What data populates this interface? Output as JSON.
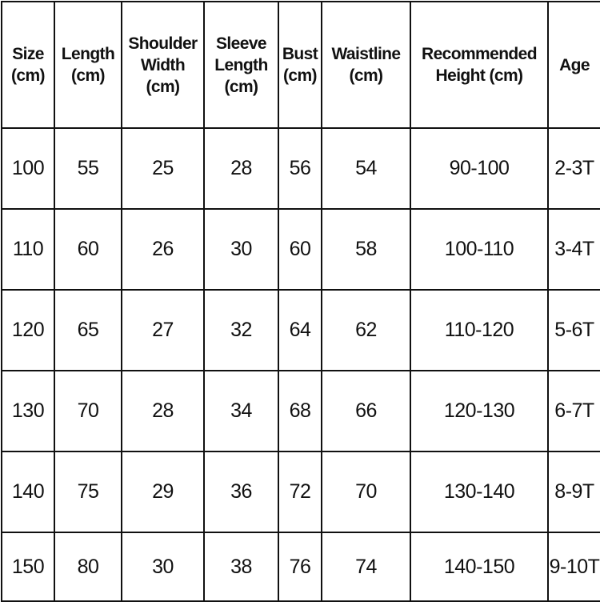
{
  "table": {
    "header": [
      [
        "Size",
        "(cm)"
      ],
      [
        "Length",
        "(cm)"
      ],
      [
        "Shoulder",
        "Width",
        "(cm)"
      ],
      [
        "Sleeve",
        "Length",
        "(cm)"
      ],
      [
        "Bust",
        "(cm)"
      ],
      [
        "Waistline",
        "(cm)"
      ],
      [
        "Recommended",
        "Height (cm)"
      ],
      [
        "Age"
      ]
    ],
    "rows": [
      [
        "100",
        "55",
        "25",
        "28",
        "56",
        "54",
        "90-100",
        "2-3T"
      ],
      [
        "110",
        "60",
        "26",
        "30",
        "60",
        "58",
        "100-110",
        "3-4T"
      ],
      [
        "120",
        "65",
        "27",
        "32",
        "64",
        "62",
        "110-120",
        "5-6T"
      ],
      [
        "130",
        "70",
        "28",
        "34",
        "68",
        "66",
        "120-130",
        "6-7T"
      ],
      [
        "140",
        "75",
        "29",
        "36",
        "72",
        "70",
        "130-140",
        "8-9T"
      ],
      [
        "150",
        "80",
        "30",
        "38",
        "76",
        "74",
        "140-150",
        "9-10T"
      ]
    ]
  }
}
